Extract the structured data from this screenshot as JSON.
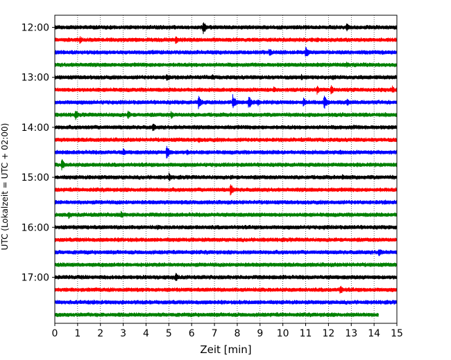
{
  "chart_data": {
    "type": "line",
    "title": "",
    "xlabel": "Zeit  [min]",
    "ylabel": "UTC (Lokalzeit = UTC + 02:00)",
    "xlim": [
      0,
      15
    ],
    "x_ticks": [
      0,
      1,
      2,
      3,
      4,
      5,
      6,
      7,
      8,
      9,
      10,
      11,
      12,
      13,
      14,
      15
    ],
    "x_tick_labels": [
      "0",
      "1",
      "2",
      "3",
      "4",
      "5",
      "6",
      "7",
      "8",
      "9",
      "10",
      "11",
      "12",
      "13",
      "14",
      "15"
    ],
    "x_grid": "dotted vertical lines at each minute",
    "y_axis": "inverted time axis, one trace per 15-minute interval",
    "y_tick_labels": [
      "12:00",
      "13:00",
      "14:00",
      "15:00",
      "16:00",
      "17:00"
    ],
    "trace_colors": [
      "#000000",
      "#ff0000",
      "#0000ff",
      "#008000"
    ],
    "series": [
      {
        "start": "12:00",
        "color": "#000000",
        "end_min": 15,
        "events": [
          {
            "t": 6.5,
            "amp": 11
          },
          {
            "t": 12.8,
            "amp": 7
          },
          {
            "t": 1.8,
            "amp": 3
          },
          {
            "t": 4.8,
            "amp": 3
          }
        ]
      },
      {
        "start": "12:15",
        "color": "#ff0000",
        "end_min": 15,
        "events": [
          {
            "t": 1.1,
            "amp": 6
          },
          {
            "t": 5.3,
            "amp": 7
          },
          {
            "t": 11.5,
            "amp": 4
          }
        ]
      },
      {
        "start": "12:30",
        "color": "#0000ff",
        "end_min": 15,
        "events": [
          {
            "t": 9.4,
            "amp": 7
          },
          {
            "t": 11.0,
            "amp": 10
          },
          {
            "t": 4.3,
            "amp": 4
          }
        ]
      },
      {
        "start": "12:45",
        "color": "#008000",
        "end_min": 15,
        "events": [
          {
            "t": 3.5,
            "amp": 3
          },
          {
            "t": 12.8,
            "amp": 5
          }
        ]
      },
      {
        "start": "13:00",
        "color": "#000000",
        "end_min": 15,
        "events": [
          {
            "t": 4.9,
            "amp": 7
          },
          {
            "t": 6.9,
            "amp": 5
          },
          {
            "t": 10.8,
            "amp": 5
          },
          {
            "t": 12.2,
            "amp": 4
          }
        ]
      },
      {
        "start": "13:15",
        "color": "#ff0000",
        "end_min": 15,
        "events": [
          {
            "t": 9.6,
            "amp": 5
          },
          {
            "t": 11.5,
            "amp": 7
          },
          {
            "t": 12.1,
            "amp": 8
          },
          {
            "t": 14.8,
            "amp": 6
          }
        ]
      },
      {
        "start": "13:30",
        "color": "#0000ff",
        "end_min": 15,
        "events": [
          {
            "t": 6.3,
            "amp": 11
          },
          {
            "t": 7.8,
            "amp": 12
          },
          {
            "t": 8.5,
            "amp": 11
          },
          {
            "t": 8.9,
            "amp": 6
          },
          {
            "t": 11.8,
            "amp": 12
          },
          {
            "t": 10.9,
            "amp": 7
          },
          {
            "t": 12.8,
            "amp": 6
          }
        ]
      },
      {
        "start": "13:45",
        "color": "#008000",
        "end_min": 15,
        "events": [
          {
            "t": 0.9,
            "amp": 8
          },
          {
            "t": 3.2,
            "amp": 7
          },
          {
            "t": 5.1,
            "amp": 6
          },
          {
            "t": 14.5,
            "amp": 4
          }
        ]
      },
      {
        "start": "14:00",
        "color": "#000000",
        "end_min": 15,
        "events": [
          {
            "t": 4.3,
            "amp": 7
          },
          {
            "t": 13.1,
            "amp": 4
          },
          {
            "t": 1.5,
            "amp": 3
          }
        ]
      },
      {
        "start": "14:15",
        "color": "#ff0000",
        "end_min": 15,
        "events": [
          {
            "t": 6.3,
            "amp": 5
          },
          {
            "t": 10.8,
            "amp": 4
          }
        ]
      },
      {
        "start": "14:30",
        "color": "#0000ff",
        "end_min": 15,
        "events": [
          {
            "t": 3.0,
            "amp": 6
          },
          {
            "t": 4.9,
            "amp": 11
          },
          {
            "t": 5.8,
            "amp": 5
          },
          {
            "t": 12.5,
            "amp": 4
          }
        ]
      },
      {
        "start": "14:45",
        "color": "#008000",
        "end_min": 15,
        "events": [
          {
            "t": 0.3,
            "amp": 9
          },
          {
            "t": 10.6,
            "amp": 3
          }
        ]
      },
      {
        "start": "15:00",
        "color": "#000000",
        "end_min": 15,
        "events": [
          {
            "t": 5.0,
            "amp": 7
          },
          {
            "t": 12.6,
            "amp": 5
          },
          {
            "t": 7.7,
            "amp": 4
          }
        ]
      },
      {
        "start": "15:15",
        "color": "#ff0000",
        "end_min": 15,
        "events": [
          {
            "t": 7.7,
            "amp": 10
          }
        ]
      },
      {
        "start": "15:30",
        "color": "#0000ff",
        "end_min": 15,
        "events": [
          {
            "t": 14.5,
            "amp": 4
          }
        ]
      },
      {
        "start": "15:45",
        "color": "#008000",
        "end_min": 15,
        "events": [
          {
            "t": 0.6,
            "amp": 6
          },
          {
            "t": 2.9,
            "amp": 6
          },
          {
            "t": 1.7,
            "amp": 4
          }
        ]
      },
      {
        "start": "16:00",
        "color": "#000000",
        "end_min": 15,
        "events": [
          {
            "t": 4.5,
            "amp": 4
          },
          {
            "t": 11.8,
            "amp": 4
          }
        ]
      },
      {
        "start": "16:15",
        "color": "#ff0000",
        "end_min": 15,
        "events": [
          {
            "t": 9.2,
            "amp": 3
          }
        ]
      },
      {
        "start": "16:30",
        "color": "#0000ff",
        "end_min": 15,
        "events": [
          {
            "t": 14.2,
            "amp": 7
          },
          {
            "t": 6.0,
            "amp": 4
          }
        ]
      },
      {
        "start": "16:45",
        "color": "#008000",
        "end_min": 15,
        "events": [
          {
            "t": 12.3,
            "amp": 3
          }
        ]
      },
      {
        "start": "17:00",
        "color": "#000000",
        "end_min": 15,
        "events": [
          {
            "t": 5.3,
            "amp": 7
          },
          {
            "t": 4.8,
            "amp": 4
          },
          {
            "t": 10.0,
            "amp": 4
          }
        ]
      },
      {
        "start": "17:15",
        "color": "#ff0000",
        "end_min": 15,
        "events": [
          {
            "t": 12.5,
            "amp": 8
          }
        ]
      },
      {
        "start": "17:30",
        "color": "#0000ff",
        "end_min": 15,
        "events": [
          {
            "t": 1.7,
            "amp": 4
          },
          {
            "t": 6.0,
            "amp": 3
          }
        ]
      },
      {
        "start": "17:45",
        "color": "#008000",
        "end_min": 14.2,
        "events": [
          {
            "t": 9.0,
            "amp": 3
          }
        ]
      }
    ]
  }
}
